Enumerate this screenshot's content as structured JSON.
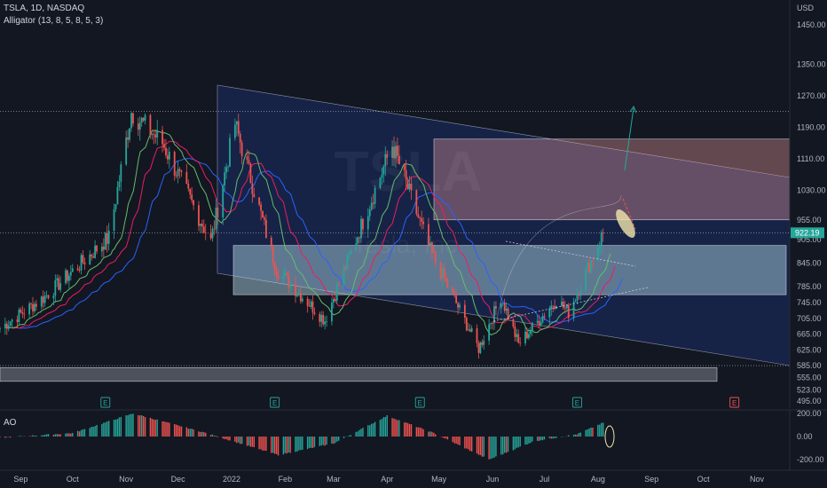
{
  "header": {
    "symbol_line": "TSLA, 1D, NASDAQ",
    "indicator_line": "Alligator (13, 8, 5, 8, 5, 3)",
    "ao_label": "AO"
  },
  "watermark": "TSLA",
  "watermark_sub": "Tesla, Inc.",
  "currency": "USD",
  "price_tag": "922.19",
  "colors": {
    "up": "#26a69a",
    "down": "#ef5350",
    "bg": "#131722",
    "channel": "#1e3a8a",
    "jaw": "#2962ff",
    "teeth": "#e91e63",
    "lips": "#66bb6a"
  },
  "icons": [
    "earnings-icon",
    "earnings-icon",
    "earnings-icon",
    "earnings-icon",
    "earnings-future-icon"
  ],
  "chart_data": [
    {
      "type": "candlestick",
      "title": "TSLA, 1D, NASDAQ",
      "ylabel": "USD",
      "ylim": [
        475,
        1530
      ],
      "y_ticks": [
        "1450.00",
        "1350.00",
        "1270.00",
        "1190.00",
        "1110.00",
        "1030.00",
        "955.00",
        "905.00",
        "845.00",
        "785.00",
        "745.00",
        "705.00",
        "665.00",
        "625.00",
        "585.00",
        "555.00",
        "523.00",
        "495.00"
      ],
      "x_ticks": [
        "Sep",
        "Oct",
        "Nov",
        "Dec",
        "2022",
        "Feb",
        "Mar",
        "Apr",
        "May",
        "Jun",
        "Jul",
        "Aug",
        "Sep",
        "Oct",
        "Nov"
      ],
      "x_range": [
        "2021-08-20",
        "2022-11-20"
      ],
      "last_price": 922.19,
      "key_points": [
        {
          "date": "2021-08-20",
          "close": 680
        },
        {
          "date": "2021-09-15",
          "close": 760
        },
        {
          "date": "2021-10-22",
          "close": 910
        },
        {
          "date": "2021-11-04",
          "close": 1229
        },
        {
          "date": "2021-11-22",
          "close": 1150
        },
        {
          "date": "2021-12-20",
          "close": 900
        },
        {
          "date": "2022-01-03",
          "close": 1199
        },
        {
          "date": "2022-01-27",
          "close": 830
        },
        {
          "date": "2022-02-24",
          "close": 700
        },
        {
          "date": "2022-04-04",
          "close": 1145
        },
        {
          "date": "2022-04-26",
          "close": 876
        },
        {
          "date": "2022-05-24",
          "close": 628
        },
        {
          "date": "2022-06-06",
          "close": 760
        },
        {
          "date": "2022-06-16",
          "close": 640
        },
        {
          "date": "2022-07-08",
          "close": 752
        },
        {
          "date": "2022-07-15",
          "close": 720
        },
        {
          "date": "2022-08-04",
          "close": 922
        }
      ],
      "indicators": [
        "Alligator jaw 13",
        "Alligator teeth 8",
        "Alligator lips 5"
      ],
      "zones": [
        {
          "kind": "resistance-box",
          "low": 955,
          "high": 1160
        },
        {
          "kind": "support-box",
          "low": 765,
          "high": 890
        },
        {
          "kind": "lower-box",
          "low": 545,
          "high": 580
        }
      ],
      "dotted_levels": [
        1230,
        922,
        585
      ]
    },
    {
      "type": "histogram",
      "title": "AO",
      "ylim": [
        -100,
        300
      ],
      "y_ticks": [
        "200.00",
        "0.00",
        "-200.00"
      ],
      "key_points": [
        {
          "date": "2021-08-20",
          "value": -10
        },
        {
          "date": "2021-10-01",
          "value": 30
        },
        {
          "date": "2021-11-05",
          "value": 200
        },
        {
          "date": "2021-12-15",
          "value": 40
        },
        {
          "date": "2022-01-28",
          "value": -160
        },
        {
          "date": "2022-03-01",
          "value": -60
        },
        {
          "date": "2022-04-01",
          "value": 180
        },
        {
          "date": "2022-04-28",
          "value": 30
        },
        {
          "date": "2022-05-30",
          "value": -200
        },
        {
          "date": "2022-06-25",
          "value": -40
        },
        {
          "date": "2022-07-20",
          "value": 20
        },
        {
          "date": "2022-08-04",
          "value": 120
        }
      ]
    }
  ]
}
